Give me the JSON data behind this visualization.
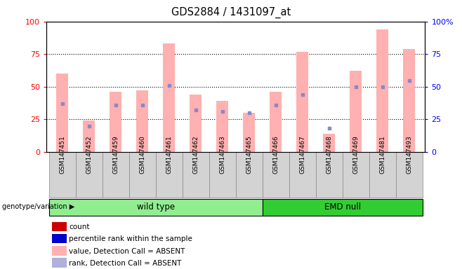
{
  "title": "GDS2884 / 1431097_at",
  "samples": [
    "GSM147451",
    "GSM147452",
    "GSM147459",
    "GSM147460",
    "GSM147461",
    "GSM147462",
    "GSM147463",
    "GSM147465",
    "GSM147466",
    "GSM147467",
    "GSM147468",
    "GSM147469",
    "GSM147481",
    "GSM147493"
  ],
  "groups": {
    "wild type": [
      0,
      1,
      2,
      3,
      4,
      5,
      6,
      7
    ],
    "EMD null": [
      8,
      9,
      10,
      11,
      12,
      13
    ]
  },
  "pink_bars": [
    60,
    24,
    46,
    47,
    83,
    44,
    39,
    30,
    46,
    77,
    14,
    62,
    94,
    79
  ],
  "blue_markers": [
    37,
    20,
    36,
    36,
    51,
    32,
    31,
    30,
    36,
    44,
    18,
    50,
    50,
    55
  ],
  "bar_width": 0.45,
  "ylim": [
    0,
    100
  ],
  "yticks": [
    0,
    25,
    50,
    75,
    100
  ],
  "ytick_labels_left": [
    "0",
    "25",
    "50",
    "75",
    "100"
  ],
  "ytick_labels_right": [
    "0",
    "25",
    "50",
    "75",
    "100%"
  ],
  "legend_items": [
    {
      "label": "count",
      "color": "#cc0000"
    },
    {
      "label": "percentile rank within the sample",
      "color": "#0000cc"
    },
    {
      "label": "value, Detection Call = ABSENT",
      "color": "#ffb0b0"
    },
    {
      "label": "rank, Detection Call = ABSENT",
      "color": "#b0b0d8"
    }
  ]
}
